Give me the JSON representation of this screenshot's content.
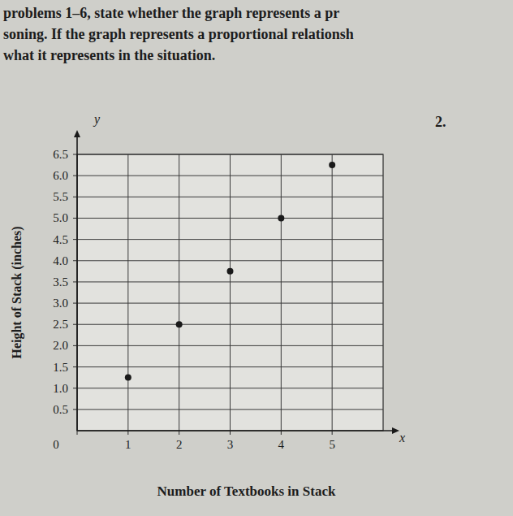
{
  "chart_data": {
    "type": "scatter",
    "annotations": [
      "problems 1–6, state whether the graph represents a pr",
      "soning. If the graph represents a proportional relationsh",
      "what it represents in the situation.",
      "2.",
      "y",
      "x"
    ],
    "x_label": "Number of Textbooks in Stack",
    "y_label": "Height of Stack (inches)",
    "x": [
      1,
      2,
      3,
      4,
      5
    ],
    "values": [
      1.25,
      2.5,
      3.75,
      5.0,
      6.25
    ],
    "xlim": [
      0,
      6
    ],
    "xticks": [
      0,
      1,
      2,
      3,
      4,
      5
    ],
    "ylim": [
      0,
      6.5
    ],
    "yticks": [
      0.5,
      {
        "value": 1,
        "label": "1.0"
      },
      1.5,
      {
        "value": 2,
        "label": "2.0"
      },
      2.5,
      {
        "value": 3,
        "label": "3.0"
      },
      3.5,
      {
        "value": 4,
        "label": "4.0"
      },
      4.5,
      {
        "value": 5,
        "label": "5.0"
      },
      5.5,
      {
        "value": 6,
        "label": "6.0"
      },
      6.5
    ],
    "grid": true,
    "color": "#1a1a1a",
    "marker": "circle"
  }
}
